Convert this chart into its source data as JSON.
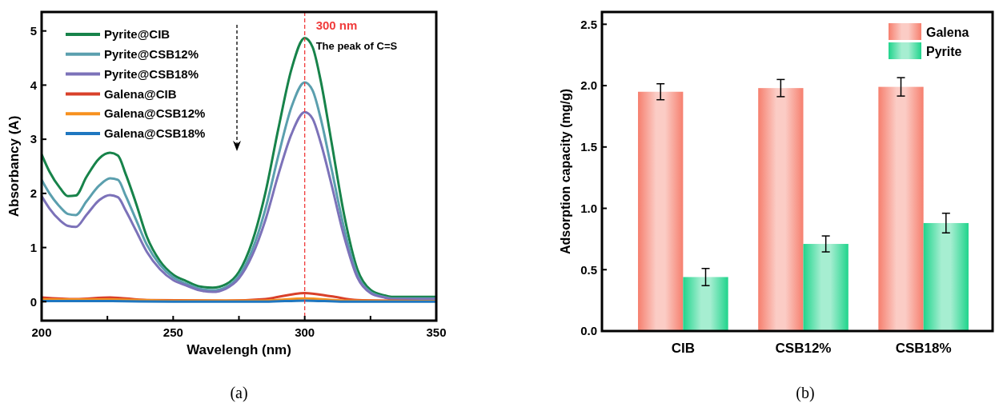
{
  "chart_data": [
    {
      "type": "line",
      "xlabel": "Wavelengh (nm)",
      "ylabel": "Absorbancy (A)",
      "xlim": [
        200,
        350
      ],
      "ylim": [
        -0.35,
        5.35
      ],
      "xticks": [
        200,
        {
          "value": 225,
          "label": null
        },
        250,
        {
          "value": 275,
          "label": null
        },
        300,
        {
          "value": 325,
          "label": null
        },
        350
      ],
      "yticks": [
        0,
        1,
        2,
        3,
        4,
        5
      ],
      "legend": "top left",
      "grid": false,
      "ref_lines": [
        {
          "axis": "x",
          "value": 300,
          "label": "300 nm",
          "color": "#f03c3c",
          "line_style": "dashed"
        }
      ],
      "annotations": [
        {
          "text": "The peak of C=S",
          "x": 300,
          "y": 4.87
        },
        "(a)"
      ],
      "series": [
        {
          "name": "Pyrite@CIB",
          "color": "#17834a",
          "x": [
            200,
            203,
            207,
            210,
            213,
            217,
            222,
            226,
            229,
            232,
            236,
            240,
            245,
            250,
            255,
            260,
            265,
            270,
            275,
            280,
            285,
            290,
            295,
            300,
            303,
            306,
            310,
            315,
            320,
            325,
            330,
            333,
            350
          ],
          "values": [
            2.72,
            2.4,
            2.1,
            1.95,
            1.96,
            2.3,
            2.65,
            2.75,
            2.7,
            2.35,
            1.8,
            1.2,
            0.75,
            0.5,
            0.38,
            0.28,
            0.26,
            0.32,
            0.55,
            1.1,
            2.0,
            3.2,
            4.3,
            4.87,
            4.7,
            4.1,
            3.0,
            1.6,
            0.6,
            0.22,
            0.12,
            0.09,
            0.09
          ]
        },
        {
          "name": "Pyrite@CSB12%",
          "color": "#5b9fae",
          "x": [
            200,
            203,
            207,
            210,
            213,
            217,
            222,
            226,
            229,
            232,
            236,
            240,
            245,
            250,
            255,
            260,
            265,
            270,
            275,
            280,
            285,
            290,
            295,
            300,
            303,
            306,
            310,
            315,
            320,
            325,
            330,
            333,
            350
          ],
          "values": [
            2.25,
            2.0,
            1.75,
            1.62,
            1.6,
            1.85,
            2.15,
            2.28,
            2.25,
            1.95,
            1.5,
            1.05,
            0.68,
            0.45,
            0.33,
            0.24,
            0.21,
            0.27,
            0.48,
            0.95,
            1.7,
            2.7,
            3.6,
            4.05,
            3.9,
            3.4,
            2.5,
            1.35,
            0.5,
            0.18,
            0.09,
            0.06,
            0.06
          ]
        },
        {
          "name": "Pyrite@CSB18%",
          "color": "#7c72b9",
          "x": [
            200,
            203,
            207,
            210,
            213,
            217,
            222,
            226,
            229,
            232,
            236,
            240,
            245,
            250,
            255,
            260,
            265,
            270,
            275,
            280,
            285,
            290,
            295,
            300,
            303,
            306,
            310,
            315,
            320,
            325,
            330,
            333,
            350
          ],
          "values": [
            1.95,
            1.72,
            1.5,
            1.4,
            1.38,
            1.6,
            1.88,
            1.97,
            1.93,
            1.68,
            1.3,
            0.92,
            0.6,
            0.4,
            0.3,
            0.21,
            0.18,
            0.24,
            0.43,
            0.85,
            1.5,
            2.35,
            3.1,
            3.5,
            3.38,
            2.95,
            2.2,
            1.2,
            0.45,
            0.16,
            0.08,
            0.05,
            0.05
          ]
        },
        {
          "name": "Galena@CIB",
          "color": "#d9402a",
          "x": [
            200,
            213,
            226,
            240,
            270,
            285,
            300,
            310,
            320,
            350
          ],
          "values": [
            0.08,
            0.05,
            0.08,
            0.03,
            0.02,
            0.05,
            0.16,
            0.1,
            0.03,
            0.01
          ]
        },
        {
          "name": "Galena@CSB12%",
          "color": "#f7901e",
          "x": [
            200,
            226,
            250,
            285,
            300,
            315,
            350
          ],
          "values": [
            0.04,
            0.04,
            0.02,
            0.02,
            0.06,
            0.02,
            0.01
          ]
        },
        {
          "name": "Galena@CSB18%",
          "color": "#1f77c0",
          "x": [
            200,
            226,
            250,
            285,
            300,
            315,
            350
          ],
          "values": [
            0.01,
            0.01,
            0.0,
            0.0,
            0.02,
            0.0,
            0.0
          ]
        }
      ]
    },
    {
      "type": "bar",
      "ylabel": "Adsorption capacity (mg/g)",
      "categories": [
        "CIB",
        "CSB12%",
        "CSB18%"
      ],
      "ylim": [
        0,
        2.6
      ],
      "yticks": [
        {
          "value": 0,
          "label": "0.0"
        },
        0.5,
        {
          "value": 1,
          "label": "1.0"
        },
        1.5,
        {
          "value": 2,
          "label": "2.0"
        },
        2.5
      ],
      "legend": "top right",
      "grid": false,
      "annotations": [
        "(b)"
      ],
      "series": [
        {
          "name": "Galena",
          "color": "#f67f6e",
          "values": [
            1.95,
            1.98,
            1.99
          ],
          "errors": [
            0.065,
            0.07,
            0.075
          ]
        },
        {
          "name": "Pyrite",
          "color": "#20d48c",
          "values": [
            0.44,
            0.71,
            0.88
          ],
          "errors": [
            0.07,
            0.065,
            0.08
          ]
        }
      ]
    }
  ]
}
